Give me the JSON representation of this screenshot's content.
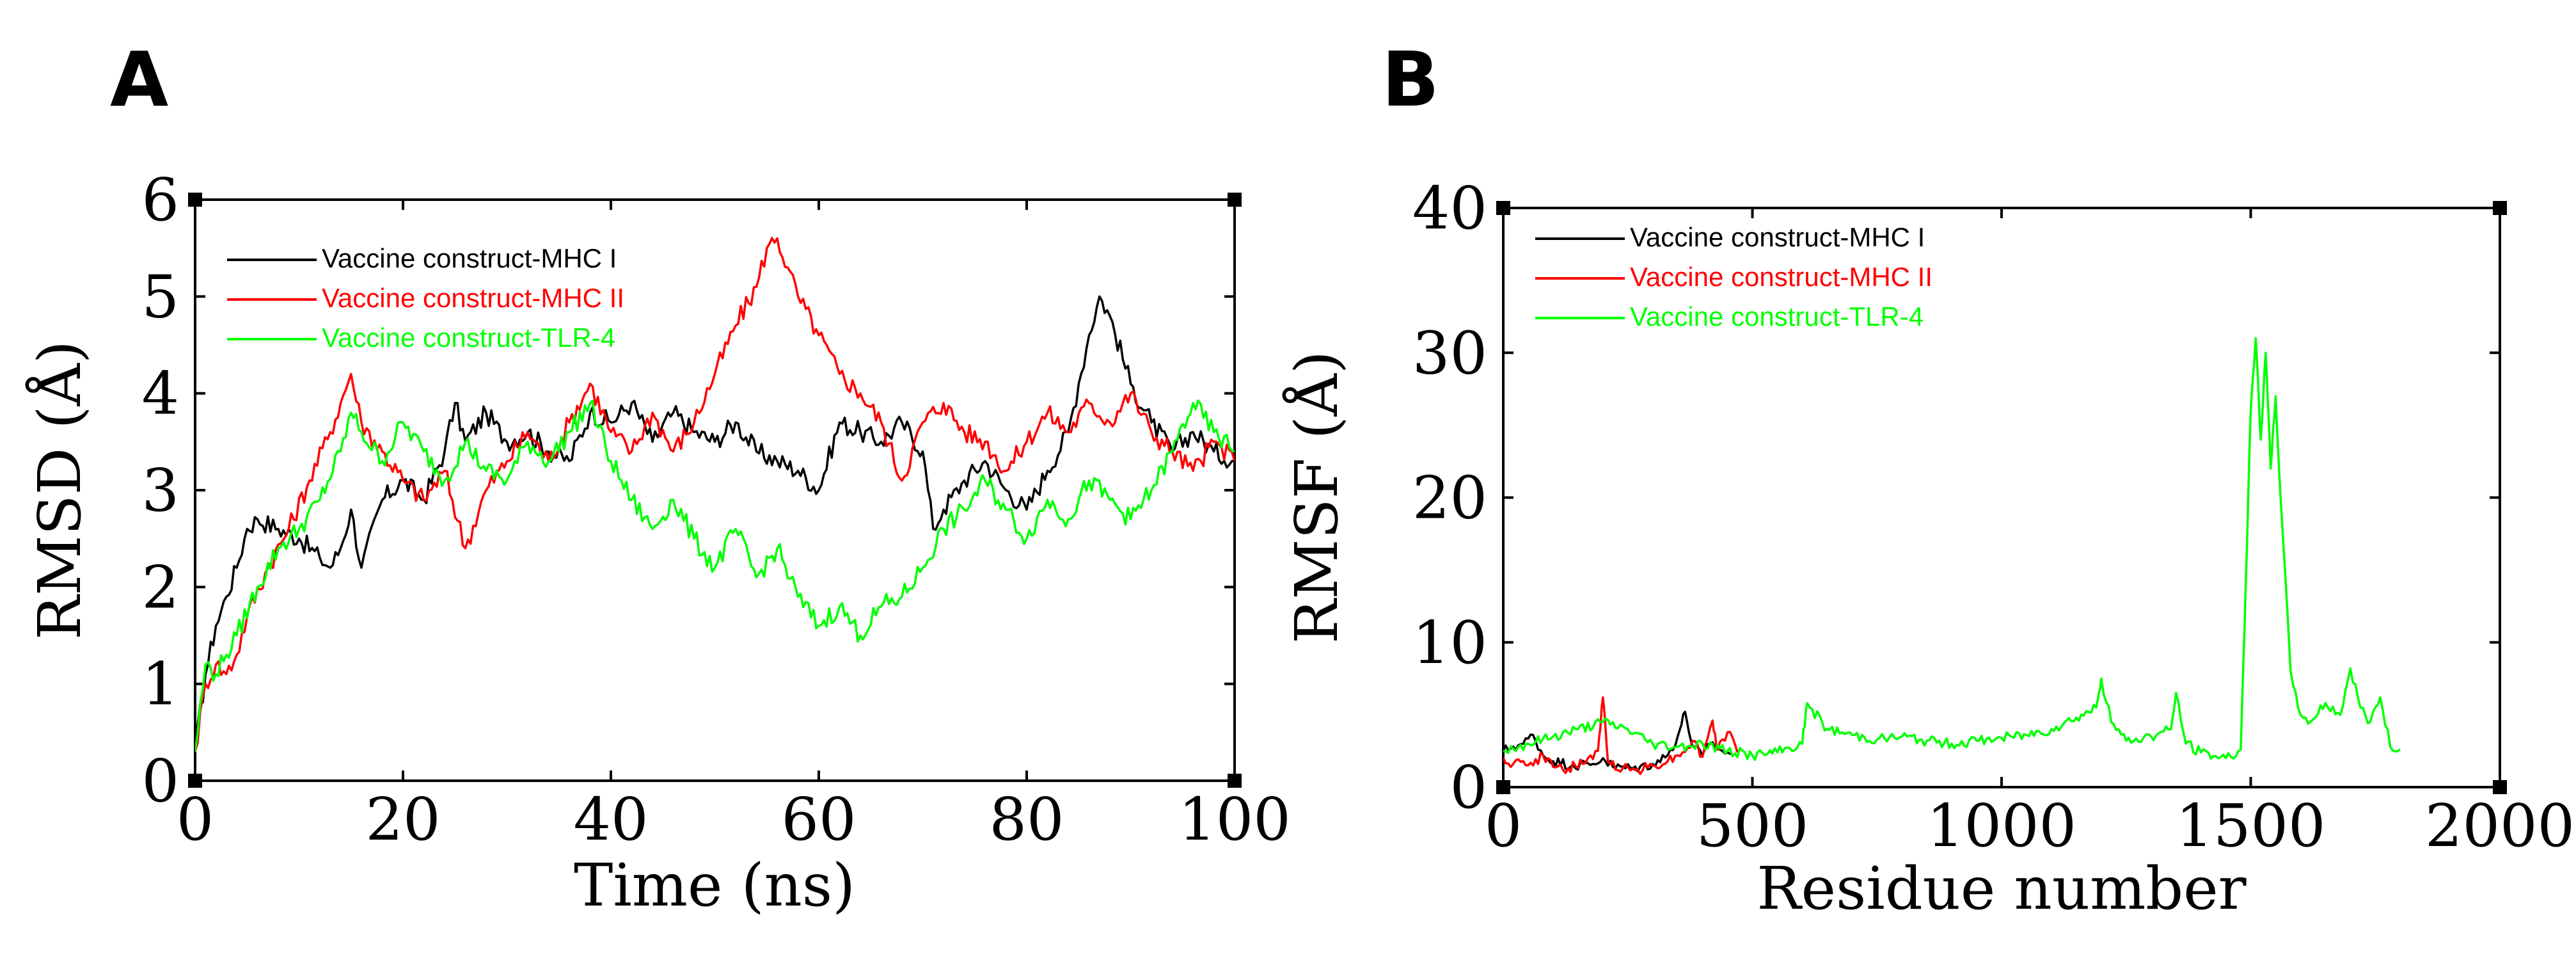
{
  "chart_data": [
    {
      "panel": "A",
      "type": "line",
      "title": "",
      "xlabel": "Time (ns)",
      "ylabel": "RMSD (Å)",
      "xlim": [
        0,
        100
      ],
      "ylim": [
        0,
        6
      ],
      "xticks": [
        "0",
        "20",
        "40",
        "60",
        "80",
        "100"
      ],
      "yticks": [
        "0",
        "1",
        "2",
        "3",
        "4",
        "5",
        "6"
      ],
      "legend_position": "top-left",
      "series": [
        {
          "name": "Vaccine construct-MHC I",
          "color": "#000000",
          "x": [
            0,
            1,
            2,
            3,
            4,
            5,
            6,
            8,
            10,
            12,
            13,
            14,
            15,
            16,
            18,
            20,
            22,
            24,
            25,
            26,
            28,
            30,
            32,
            34,
            36,
            38,
            40,
            42,
            44,
            46,
            48,
            50,
            52,
            54,
            56,
            58,
            60,
            62,
            64,
            66,
            68,
            70,
            71,
            72,
            74,
            76,
            78,
            80,
            82,
            84,
            85,
            86,
            87,
            88,
            90,
            92,
            94,
            96,
            98,
            100
          ],
          "y": [
            0.3,
            1.1,
            1.6,
            1.9,
            2.2,
            2.6,
            2.7,
            2.6,
            2.5,
            2.3,
            2.2,
            2.4,
            2.8,
            2.2,
            2.9,
            3.1,
            2.9,
            3.4,
            3.9,
            3.5,
            3.8,
            3.5,
            3.6,
            3.4,
            3.3,
            3.8,
            3.7,
            3.9,
            3.5,
            3.8,
            3.6,
            3.5,
            3.7,
            3.4,
            3.3,
            3.2,
            3.0,
            3.7,
            3.6,
            3.5,
            3.7,
            3.4,
            2.6,
            2.8,
            3.1,
            3.3,
            3.0,
            2.8,
            3.2,
            3.6,
            4.1,
            4.6,
            5.0,
            4.8,
            4.1,
            3.7,
            3.4,
            3.6,
            3.4,
            3.3
          ]
        },
        {
          "name": "Vaccine construct-MHC II",
          "color": "#ff0000",
          "x": [
            0,
            1,
            2,
            3,
            4,
            5,
            7,
            9,
            11,
            13,
            14,
            15,
            16,
            18,
            20,
            22,
            24,
            26,
            28,
            30,
            32,
            34,
            36,
            38,
            40,
            42,
            44,
            46,
            48,
            50,
            52,
            54,
            55,
            56,
            57,
            58,
            60,
            62,
            64,
            66,
            68,
            70,
            72,
            74,
            76,
            78,
            80,
            82,
            84,
            86,
            88,
            90,
            92,
            94,
            96,
            98,
            100
          ],
          "y": [
            0.3,
            1.0,
            1.2,
            1.1,
            1.3,
            1.7,
            2.2,
            2.6,
            3.1,
            3.6,
            3.9,
            4.2,
            3.7,
            3.4,
            3.1,
            2.9,
            3.2,
            2.4,
            3.0,
            3.3,
            3.6,
            3.3,
            3.7,
            4.1,
            3.6,
            3.4,
            3.8,
            3.4,
            3.7,
            4.2,
            4.7,
            5.1,
            5.5,
            5.6,
            5.3,
            5.0,
            4.6,
            4.2,
            4.0,
            3.7,
            3.1,
            3.7,
            3.9,
            3.6,
            3.5,
            3.2,
            3.5,
            3.8,
            3.6,
            3.9,
            3.7,
            4.0,
            3.6,
            3.4,
            3.2,
            3.5,
            3.3
          ]
        },
        {
          "name": "Vaccine construct-TLR-4",
          "color": "#00ff00",
          "x": [
            0,
            1,
            2,
            3,
            4,
            6,
            8,
            10,
            12,
            14,
            15,
            16,
            18,
            20,
            22,
            24,
            26,
            28,
            30,
            32,
            34,
            36,
            38,
            40,
            42,
            44,
            46,
            48,
            50,
            52,
            54,
            56,
            58,
            60,
            62,
            64,
            66,
            68,
            70,
            72,
            74,
            76,
            78,
            80,
            82,
            84,
            86,
            88,
            90,
            92,
            94,
            96,
            98,
            100
          ],
          "y": [
            0.3,
            1.2,
            1.1,
            1.3,
            1.5,
            2.0,
            2.4,
            2.6,
            2.9,
            3.4,
            3.8,
            3.6,
            3.3,
            3.7,
            3.4,
            3.1,
            3.5,
            3.2,
            3.1,
            3.5,
            3.3,
            3.6,
            3.9,
            3.3,
            2.9,
            2.6,
            2.9,
            2.5,
            2.2,
            2.6,
            2.1,
            2.4,
            1.9,
            1.6,
            1.8,
            1.5,
            1.8,
            1.9,
            2.2,
            2.6,
            2.8,
            3.1,
            2.8,
            2.5,
            2.9,
            2.7,
            3.1,
            2.9,
            2.7,
            3.0,
            3.4,
            3.9,
            3.6,
            3.4
          ]
        }
      ]
    },
    {
      "panel": "B",
      "type": "line",
      "title": "",
      "xlabel": "Residue number",
      "ylabel": "RMSF (Å)",
      "xlim": [
        0,
        2000
      ],
      "ylim": [
        0,
        40
      ],
      "xticks": [
        "0",
        "500",
        "1000",
        "1500",
        "2000"
      ],
      "yticks": [
        "0",
        "10",
        "20",
        "30",
        "40"
      ],
      "legend_position": "top-left",
      "series": [
        {
          "name": "Vaccine construct-MHC I",
          "color": "#000000",
          "x": [
            0,
            20,
            40,
            60,
            80,
            100,
            140,
            180,
            200,
            220,
            260,
            300,
            330,
            350,
            365,
            380,
            400,
            420,
            440,
            460
          ],
          "y": [
            2.5,
            2.8,
            3.0,
            3.6,
            2.2,
            1.8,
            1.5,
            1.6,
            2.0,
            1.4,
            1.3,
            1.6,
            2.2,
            3.5,
            5.2,
            2.8,
            2.2,
            3.1,
            2.5,
            2.3
          ]
        },
        {
          "name": "Vaccine construct-MHC II",
          "color": "#ff0000",
          "x": [
            0,
            20,
            40,
            60,
            80,
            100,
            130,
            160,
            190,
            200,
            210,
            240,
            270,
            300,
            330,
            360,
            380,
            400,
            420,
            430,
            450,
            470
          ],
          "y": [
            2.0,
            1.6,
            1.8,
            1.5,
            2.2,
            1.4,
            1.3,
            1.6,
            2.5,
            6.2,
            1.8,
            1.3,
            1.2,
            1.5,
            1.8,
            2.4,
            3.2,
            2.1,
            4.6,
            2.6,
            3.8,
            2.4
          ]
        },
        {
          "name": "Vaccine construct-TLR-4",
          "color": "#00ff00",
          "x": [
            0,
            50,
            100,
            150,
            200,
            250,
            300,
            350,
            400,
            450,
            500,
            550,
            600,
            610,
            650,
            700,
            750,
            800,
            850,
            900,
            950,
            1000,
            1050,
            1100,
            1150,
            1190,
            1200,
            1220,
            1250,
            1300,
            1340,
            1350,
            1370,
            1400,
            1450,
            1480,
            1490,
            1500,
            1510,
            1520,
            1530,
            1540,
            1550,
            1560,
            1580,
            1600,
            1620,
            1650,
            1680,
            1700,
            1720,
            1740,
            1760,
            1780,
            1800
          ],
          "y": [
            2.5,
            3.0,
            3.5,
            4.0,
            4.5,
            4.0,
            3.0,
            2.8,
            3.0,
            2.5,
            2.2,
            2.4,
            3.0,
            5.8,
            4.0,
            3.6,
            3.3,
            3.5,
            3.2,
            3.0,
            3.2,
            3.4,
            3.6,
            4.0,
            4.8,
            5.5,
            7.5,
            4.5,
            3.2,
            3.5,
            4.0,
            6.5,
            3.0,
            2.4,
            2.0,
            2.6,
            14.0,
            26.0,
            31.0,
            24.0,
            30.0,
            22.0,
            27.0,
            20.0,
            8.0,
            5.0,
            4.5,
            5.8,
            5.0,
            8.2,
            5.5,
            4.5,
            6.2,
            2.8,
            2.6
          ]
        }
      ]
    }
  ]
}
